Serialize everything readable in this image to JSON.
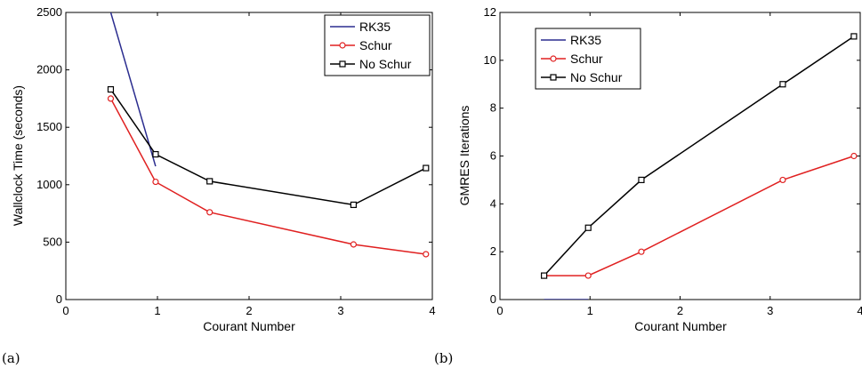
{
  "chart_data": [
    {
      "type": "line",
      "panel_label": "(a)",
      "xlabel": "Courant Number",
      "ylabel": "Wallclock Time (seconds)",
      "xlim": [
        0,
        4
      ],
      "ylim": [
        0,
        2500
      ],
      "xticks": [
        0,
        1,
        2,
        3,
        4
      ],
      "yticks": [
        0,
        500,
        1000,
        1500,
        2000,
        2500
      ],
      "legend_position": "top-right",
      "grid": false,
      "series": [
        {
          "name": "RK35",
          "color": "#2b2d8f",
          "marker": "none",
          "x": [
            0.49,
            0.98
          ],
          "y": [
            2500,
            1160
          ]
        },
        {
          "name": "Schur",
          "color": "#e02020",
          "marker": "circle",
          "x": [
            0.49,
            0.98,
            1.57,
            3.14,
            3.93
          ],
          "y": [
            1750,
            1025,
            760,
            480,
            395
          ]
        },
        {
          "name": "No Schur",
          "color": "#000000",
          "marker": "square",
          "x": [
            0.49,
            0.98,
            1.57,
            3.14,
            3.93
          ],
          "y": [
            1830,
            1265,
            1030,
            825,
            1145
          ]
        }
      ]
    },
    {
      "type": "line",
      "panel_label": "(b)",
      "xlabel": "Courant Number",
      "ylabel": "GMRES Iterations",
      "xlim": [
        0,
        4
      ],
      "ylim": [
        0,
        12
      ],
      "xticks": [
        0,
        1,
        2,
        3,
        4
      ],
      "yticks": [
        0,
        2,
        4,
        6,
        8,
        10,
        12
      ],
      "legend_position": "top-left",
      "grid": false,
      "series": [
        {
          "name": "RK35",
          "color": "#2b2d8f",
          "marker": "none",
          "x": [
            0.49,
            0.98
          ],
          "y": [
            0,
            0
          ]
        },
        {
          "name": "Schur",
          "color": "#e02020",
          "marker": "circle",
          "x": [
            0.49,
            0.98,
            1.57,
            3.14,
            3.93
          ],
          "y": [
            1,
            1,
            2,
            5,
            6
          ]
        },
        {
          "name": "No Schur",
          "color": "#000000",
          "marker": "square",
          "x": [
            0.49,
            0.98,
            1.57,
            3.14,
            3.93
          ],
          "y": [
            1,
            3,
            5,
            9,
            11
          ]
        }
      ]
    }
  ]
}
